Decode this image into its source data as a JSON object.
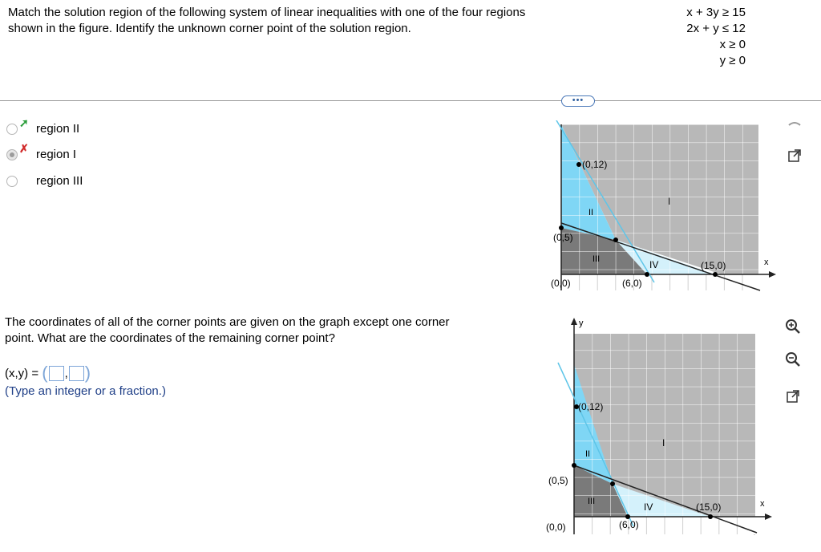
{
  "question": {
    "line1": "Match the solution region of the following system of linear inequalities with one of the four regions",
    "line2": "shown in the figure. Identify the unknown corner point of the solution region."
  },
  "system": [
    "x + 3y ≥ 15",
    "2x + y ≤ 12",
    "x ≥ 0",
    "y ≥ 0"
  ],
  "more_button": "•••",
  "options": [
    {
      "label": "region II",
      "mark": "check",
      "selected": false
    },
    {
      "label": "region I",
      "mark": "cross",
      "selected": true
    },
    {
      "label": "region III",
      "mark": "",
      "selected": false
    }
  ],
  "question2": {
    "line1": "The coordinates of all of the corner points are given on the graph except one corner",
    "line2": "point. What are the coordinates of the remaining corner point?"
  },
  "answer": {
    "prefix": "(x,y) =",
    "open": "(",
    "comma": ",",
    "close": ")"
  },
  "hint": "(Type an integer or a fraction.)",
  "graph_top": {
    "labels": {
      "p012": "(0,12)",
      "p05": "(0,5)",
      "p00": "(0,0)",
      "p60": "(6,0)",
      "p150": "(15,0)",
      "r1": "I",
      "r2": "II",
      "r3": "III",
      "r4": "IV",
      "xaxis": "x"
    }
  },
  "graph_bottom": {
    "labels": {
      "p012": "(0,12)",
      "p05": "(0,5)",
      "p00": "(0,0)",
      "p60": "(6,0)",
      "p150": "(15,0)",
      "r1": "I",
      "r2": "II",
      "r3": "III",
      "r4": "IV",
      "xaxis": "x",
      "yaxis": "y"
    }
  },
  "colors": {
    "region1": "#b8b8b8",
    "region2": "#7fd6f5",
    "region3": "#7a7a7a",
    "region4": "#d4f1fb",
    "check": "#2a9d3a",
    "cross": "#d12b2b"
  },
  "tools": [
    "pin-icon",
    "popout-icon",
    "zoom-in-icon",
    "zoom-out-icon",
    "popout-icon"
  ]
}
